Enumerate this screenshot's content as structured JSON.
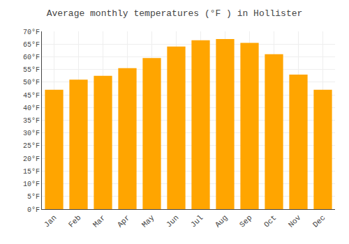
{
  "chart_data": {
    "type": "bar",
    "title": "Average monthly temperatures (°F ) in Hollister",
    "categories": [
      "Jan",
      "Feb",
      "Mar",
      "Apr",
      "May",
      "Jun",
      "Jul",
      "Aug",
      "Sep",
      "Oct",
      "Nov",
      "Dec"
    ],
    "values": [
      47,
      51,
      52.5,
      55.5,
      59.5,
      64,
      66.5,
      67,
      65.5,
      61,
      53,
      47
    ],
    "color": "#FFA500",
    "ylim": [
      0,
      70
    ],
    "yticks": [
      {
        "value": 0,
        "label": "0°F"
      },
      {
        "value": 5,
        "label": "5°F"
      },
      {
        "value": 10,
        "label": "10°F"
      },
      {
        "value": 15,
        "label": "15°F"
      },
      {
        "value": 20,
        "label": "20°F"
      },
      {
        "value": 25,
        "label": "25°F"
      },
      {
        "value": 30,
        "label": "30°F"
      },
      {
        "value": 35,
        "label": "35°F"
      },
      {
        "value": 40,
        "label": "40°F"
      },
      {
        "value": 45,
        "label": "45°F"
      },
      {
        "value": 50,
        "label": "50°F"
      },
      {
        "value": 55,
        "label": "55°F"
      },
      {
        "value": 60,
        "label": "60°F"
      },
      {
        "value": 65,
        "label": "65°F"
      },
      {
        "value": 70,
        "label": "70°F"
      }
    ],
    "grid": true
  }
}
